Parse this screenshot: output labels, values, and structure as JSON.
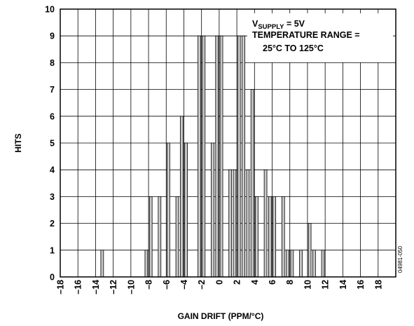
{
  "chart_data": {
    "type": "bar",
    "title": "",
    "xlabel": "GAIN DRIFT (PPM/°C)",
    "ylabel": "HITS",
    "xlim": [
      -18,
      20
    ],
    "ylim": [
      0,
      10
    ],
    "x_ticks": [
      "–18",
      "–16",
      "–14",
      "–12",
      "–10",
      "–8",
      "–6",
      "–4",
      "–2",
      "0",
      "2",
      "4",
      "6",
      "8",
      "10",
      "12",
      "14",
      "16",
      "18"
    ],
    "x_tick_values": [
      -18,
      -16,
      -14,
      -12,
      -10,
      -8,
      -6,
      -4,
      -2,
      0,
      2,
      4,
      6,
      8,
      10,
      12,
      14,
      16,
      18
    ],
    "y_ticks": [
      0,
      1,
      2,
      3,
      4,
      5,
      6,
      7,
      8,
      9,
      10
    ],
    "grid": true,
    "legend": "none",
    "bin_width": 0.5,
    "x": [
      -13.5,
      -8.5,
      -8,
      -7,
      -6,
      -5,
      -4.5,
      -4,
      -2.5,
      -2,
      -1,
      -0.5,
      0,
      1,
      1.5,
      2,
      2.5,
      3,
      3.5,
      4,
      5,
      5.5,
      6,
      7,
      7.5,
      8,
      9,
      10,
      10.5,
      11.5
    ],
    "values": [
      1,
      1,
      3,
      3,
      5,
      3,
      6,
      5,
      9,
      9,
      5,
      9,
      9,
      4,
      4,
      9,
      9,
      4,
      7,
      3,
      4,
      3,
      3,
      3,
      1,
      1,
      1,
      2,
      1,
      1
    ]
  },
  "annotation": {
    "line1_prefix": "V",
    "line1_subscript": "SUPPLY",
    "line1_suffix": " = 5V",
    "line2": "TEMPERATURE RANGE =",
    "line3": "25°C TO 125°C"
  },
  "figure_id": "04981-050",
  "colors": {
    "bar_fill": "#c8c8c8",
    "bar_stroke": "#000000",
    "grid": "#000000",
    "text": "#000000"
  }
}
